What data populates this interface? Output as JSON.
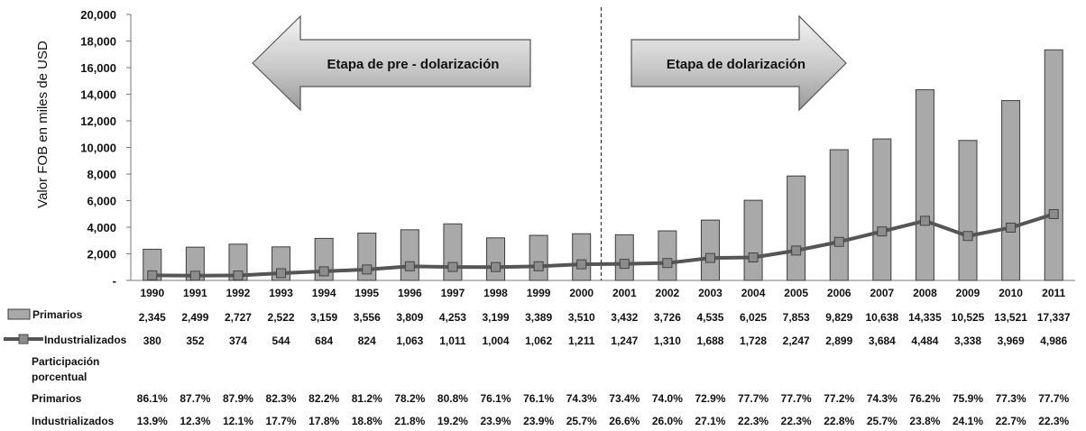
{
  "chart_data": {
    "type": "bar",
    "ylabel": "Valor FOB en miles de USD",
    "ylim": [
      0,
      20000
    ],
    "ytick_labels": [
      "-",
      "2,000",
      "4,000",
      "6,000",
      "8,000",
      "10,000",
      "12,000",
      "14,000",
      "16,000",
      "18,000",
      "20,000"
    ],
    "categories": [
      "1990",
      "1991",
      "1992",
      "1993",
      "1994",
      "1995",
      "1996",
      "1997",
      "1998",
      "1999",
      "2000",
      "2001",
      "2002",
      "2003",
      "2004",
      "2005",
      "2006",
      "2007",
      "2008",
      "2009",
      "2010",
      "2011"
    ],
    "series": [
      {
        "name": "Primarios",
        "kind": "bar",
        "values": [
          2345,
          2499,
          2727,
          2522,
          3159,
          3556,
          3809,
          4253,
          3199,
          3389,
          3510,
          3432,
          3726,
          4535,
          6025,
          7853,
          9829,
          10638,
          14335,
          10525,
          13521,
          17337
        ],
        "labels": [
          "2,345",
          "2,499",
          "2,727",
          "2,522",
          "3,159",
          "3,556",
          "3,809",
          "4,253",
          "3,199",
          "3,389",
          "3,510",
          "3,432",
          "3,726",
          "4,535",
          "6,025",
          "7,853",
          "9,829",
          "10,638",
          "14,335",
          "10,525",
          "13,521",
          "17,337"
        ]
      },
      {
        "name": "Industrializados",
        "kind": "line",
        "values": [
          380,
          352,
          374,
          544,
          684,
          824,
          1063,
          1011,
          1004,
          1062,
          1211,
          1247,
          1310,
          1688,
          1728,
          2247,
          2899,
          3684,
          4484,
          3338,
          3969,
          4986
        ],
        "labels": [
          "380",
          "352",
          "374",
          "544",
          "684",
          "824",
          "1,063",
          "1,011",
          "1,004",
          "1,062",
          "1,211",
          "1,247",
          "1,310",
          "1,688",
          "1,728",
          "2,247",
          "2,899",
          "3,684",
          "4,484",
          "3,338",
          "3,969",
          "4,986"
        ]
      }
    ],
    "annotations": [
      {
        "text": "Etapa de pre - dolarización",
        "shape": "arrow-left"
      },
      {
        "text": "Etapa de dolarización",
        "shape": "arrow-right"
      }
    ],
    "divider_after": "2000",
    "share_table": {
      "heading": [
        "Participación",
        "porcentual"
      ],
      "rows": [
        {
          "label": "Primarios",
          "values": [
            "86.1%",
            "87.7%",
            "87.9%",
            "82.3%",
            "82.2%",
            "81.2%",
            "78.2%",
            "80.8%",
            "76.1%",
            "76.1%",
            "74.3%",
            "73.4%",
            "74.0%",
            "72.9%",
            "77.7%",
            "77.7%",
            "77.2%",
            "74.3%",
            "76.2%",
            "75.9%",
            "77.3%",
            "77.7%"
          ]
        },
        {
          "label": "Industrializados",
          "values": [
            "13.9%",
            "12.3%",
            "12.1%",
            "17.7%",
            "17.8%",
            "18.8%",
            "21.8%",
            "19.2%",
            "23.9%",
            "23.9%",
            "25.7%",
            "26.6%",
            "26.0%",
            "27.1%",
            "22.3%",
            "22.3%",
            "22.8%",
            "25.7%",
            "23.8%",
            "24.1%",
            "22.7%",
            "22.3%"
          ]
        }
      ]
    },
    "colors": {
      "bar_fill": "#a9a9a9",
      "bar_stroke": "#3c3c3c",
      "line": "#555555",
      "marker": "#8c8c8c",
      "arrow_light": "#f2f2f2",
      "arrow_dark": "#a6a6a6"
    },
    "grid": false
  }
}
